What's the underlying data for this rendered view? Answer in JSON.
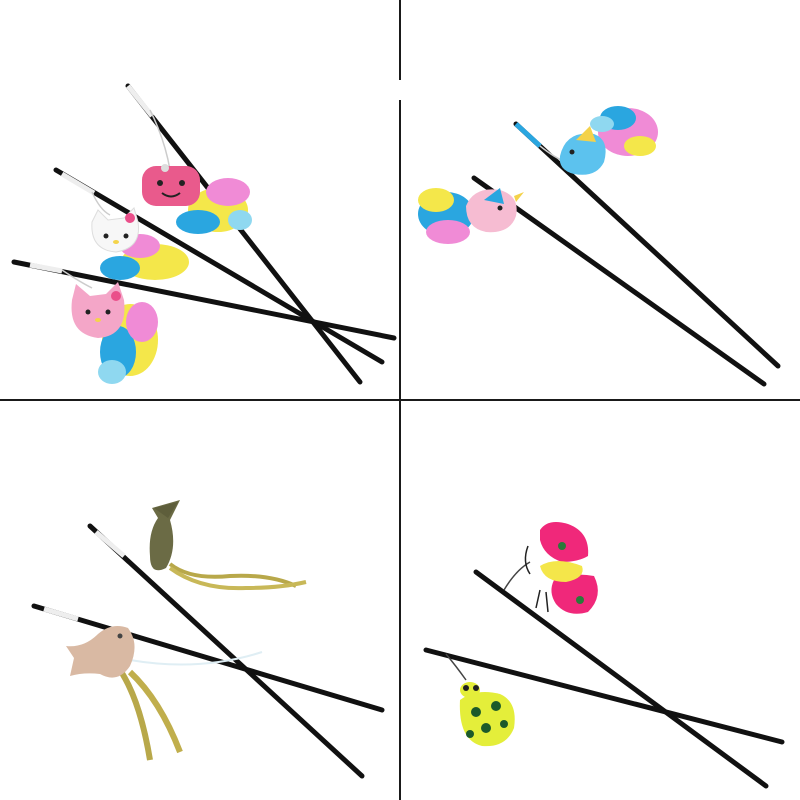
{
  "image": {
    "background": "#ffffff",
    "divider_color": "#1a1a1a",
    "stick_color": "#111111",
    "panels": [
      {
        "position": "top-left",
        "sticks": 3,
        "toys": [
          "pink-bear-head",
          "white-cat-head",
          "pink-cat-head"
        ],
        "feather_colors": [
          "#f08bd6",
          "#2aa6e0",
          "#f4e74a",
          "#8fd8f0"
        ]
      },
      {
        "position": "top-right",
        "sticks": 2,
        "toys": [
          "blue-bird",
          "pink-bird"
        ],
        "feather_colors": [
          "#f08bd6",
          "#2aa6e0",
          "#f4e74a",
          "#8fd8f0"
        ]
      },
      {
        "position": "bottom-left",
        "sticks": 2,
        "toys": [
          "green-burlap-fish",
          "beige-burlap-fish"
        ],
        "ribbon_color": "#b8a84a"
      },
      {
        "position": "bottom-right",
        "sticks": 2,
        "toys": [
          "pink-butterfly",
          "yellow-ladybug"
        ],
        "accent_colors": [
          "#f0287a",
          "#f4e64a",
          "#2a7a3a"
        ]
      }
    ]
  }
}
